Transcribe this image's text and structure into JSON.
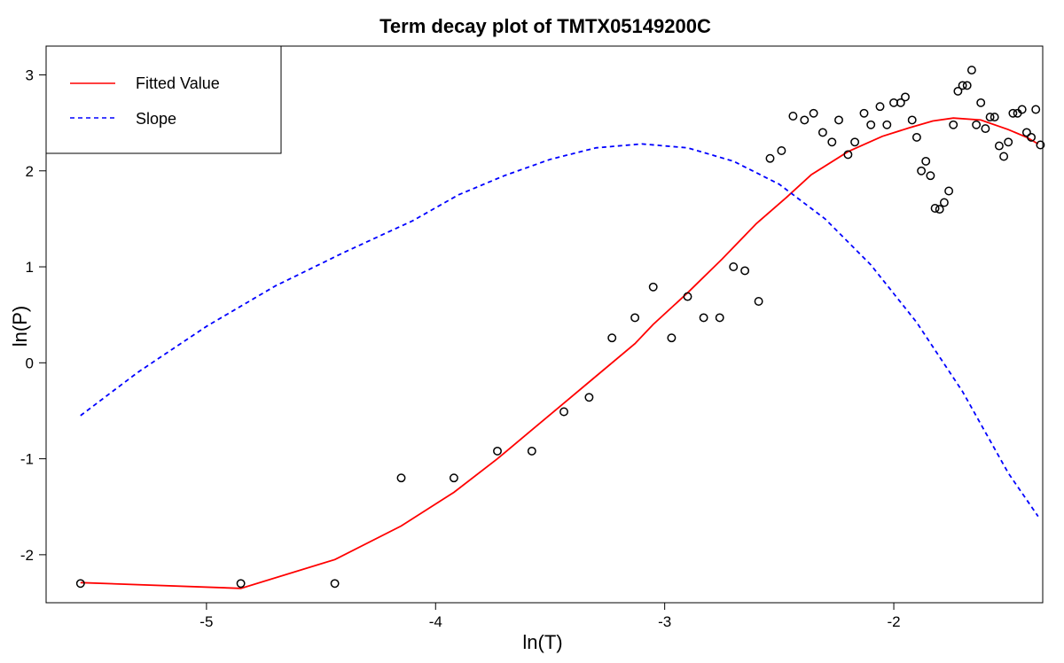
{
  "chart_data": {
    "type": "line",
    "title": "Term decay plot of TMTX05149200C",
    "xlabel": "ln(T)",
    "ylabel": "ln(P)",
    "xlim": [
      -5.7,
      -1.35
    ],
    "ylim": [
      -2.5,
      3.3
    ],
    "xticks": [
      -5,
      -4,
      -3,
      -2
    ],
    "yticks": [
      -2,
      -1,
      0,
      1,
      2,
      3
    ],
    "xtick_labels": [
      "-5",
      "-4",
      "-3",
      "-2"
    ],
    "ytick_labels": [
      "-2",
      "-1",
      "0",
      "1",
      "2",
      "3"
    ],
    "legend": {
      "position": "top-left",
      "entries": [
        {
          "label": "Fitted Value",
          "color": "#ff0000",
          "style": "solid"
        },
        {
          "label": "Slope",
          "color": "#0000ff",
          "style": "dashed"
        }
      ]
    },
    "series": [
      {
        "name": "Fitted Value",
        "kind": "line",
        "color": "#ff0000",
        "style": "solid",
        "x": [
          -5.55,
          -4.85,
          -4.44,
          -4.15,
          -3.92,
          -3.73,
          -3.58,
          -3.44,
          -3.33,
          -3.13,
          -3.05,
          -2.9,
          -2.75,
          -2.6,
          -2.47,
          -2.36,
          -2.2,
          -2.05,
          -1.93,
          -1.83,
          -1.74,
          -1.62,
          -1.5,
          -1.42,
          -1.37
        ],
        "y": [
          -2.29,
          -2.35,
          -2.05,
          -1.7,
          -1.35,
          -1.0,
          -0.7,
          -0.42,
          -0.2,
          0.2,
          0.4,
          0.73,
          1.08,
          1.45,
          1.72,
          1.96,
          2.2,
          2.36,
          2.45,
          2.52,
          2.55,
          2.53,
          2.43,
          2.35,
          2.28
        ]
      },
      {
        "name": "Slope",
        "kind": "line",
        "color": "#0000ff",
        "style": "dashed",
        "x": [
          -5.55,
          -5.3,
          -5.0,
          -4.7,
          -4.4,
          -4.1,
          -3.9,
          -3.7,
          -3.5,
          -3.3,
          -3.1,
          -2.9,
          -2.7,
          -2.5,
          -2.3,
          -2.1,
          -1.9,
          -1.7,
          -1.5,
          -1.37
        ],
        "y": [
          -0.55,
          -0.1,
          0.38,
          0.8,
          1.15,
          1.48,
          1.75,
          1.95,
          2.12,
          2.24,
          2.28,
          2.24,
          2.1,
          1.86,
          1.5,
          1.02,
          0.42,
          -0.3,
          -1.15,
          -1.6
        ]
      },
      {
        "name": "Observed",
        "kind": "scatter",
        "color": "#000000",
        "x": [
          -5.55,
          -4.85,
          -4.44,
          -4.15,
          -3.92,
          -3.73,
          -3.58,
          -3.44,
          -3.33,
          -3.23,
          -3.13,
          -3.05,
          -2.97,
          -2.9,
          -2.83,
          -2.76,
          -2.7,
          -2.65,
          -2.59,
          -2.54,
          -2.49,
          -2.44,
          -2.39,
          -2.35,
          -2.31,
          -2.27,
          -2.24,
          -2.2,
          -2.17,
          -2.13,
          -2.1,
          -2.06,
          -2.03,
          -2.0,
          -1.97,
          -1.95,
          -1.92,
          -1.9,
          -1.88,
          -1.86,
          -1.84,
          -1.82,
          -1.8,
          -1.78,
          -1.76,
          -1.74,
          -1.72,
          -1.7,
          -1.68,
          -1.66,
          -1.64,
          -1.62,
          -1.6,
          -1.58,
          -1.56,
          -1.54,
          -1.52,
          -1.5,
          -1.48,
          -1.46,
          -1.44,
          -1.42,
          -1.4,
          -1.38,
          -1.36
        ],
        "y": [
          -2.3,
          -2.3,
          -2.3,
          -1.2,
          -1.2,
          -0.92,
          -0.92,
          -0.51,
          -0.36,
          0.26,
          0.47,
          0.79,
          0.26,
          0.69,
          0.47,
          0.47,
          1.0,
          0.96,
          0.64,
          2.13,
          2.21,
          2.57,
          2.53,
          2.6,
          2.4,
          2.3,
          2.53,
          2.17,
          2.3,
          2.6,
          2.48,
          2.67,
          2.48,
          2.71,
          2.71,
          2.77,
          2.53,
          2.35,
          2.0,
          2.1,
          1.95,
          1.61,
          1.6,
          1.67,
          1.79,
          2.48,
          2.83,
          2.89,
          2.89,
          3.05,
          2.48,
          2.71,
          2.44,
          2.56,
          2.56,
          2.26,
          2.15,
          2.3,
          2.6,
          2.6,
          2.64,
          2.4,
          2.35,
          2.64,
          2.27
        ]
      }
    ]
  }
}
